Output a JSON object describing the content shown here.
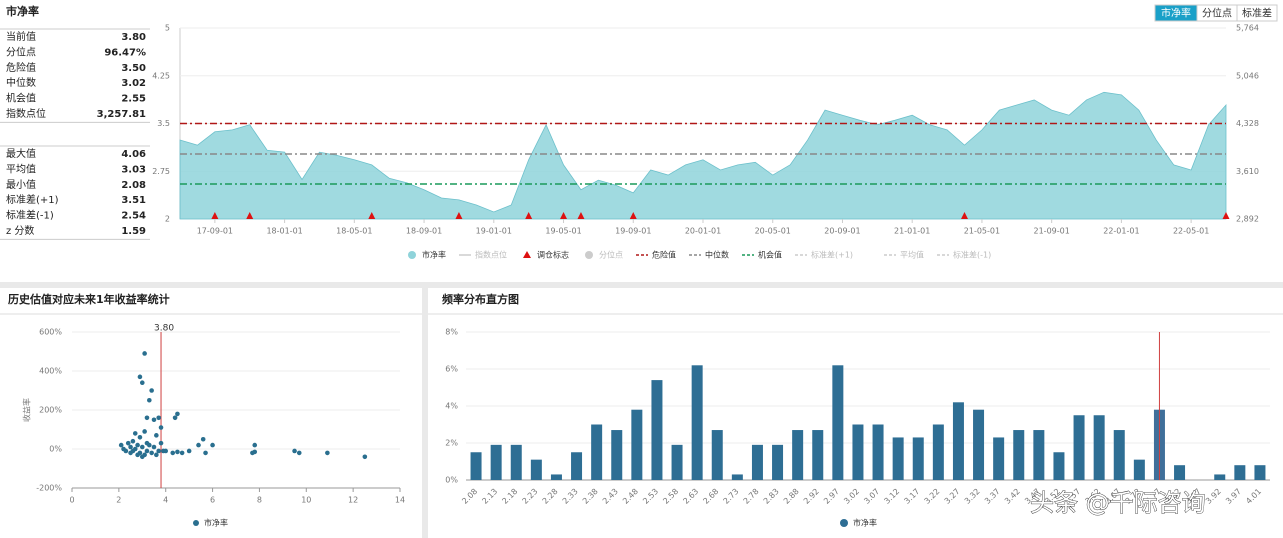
{
  "header": {
    "title": "市净率",
    "tabs": [
      "市净率",
      "分位点",
      "标准差"
    ]
  },
  "stats": {
    "groups": [
      [
        [
          "当前值",
          "3.80"
        ],
        [
          "分位点",
          "96.47%"
        ],
        [
          "危险值",
          "3.50"
        ],
        [
          "中位数",
          "3.02"
        ],
        [
          "机会值",
          "2.55"
        ],
        [
          "指数点位",
          "3,257.81"
        ]
      ],
      [
        [
          "最大值",
          "4.06"
        ],
        [
          "平均值",
          "3.03"
        ],
        [
          "最小值",
          "2.08"
        ],
        [
          "标准差(+1)",
          "3.51"
        ],
        [
          "标准差(-1)",
          "2.54"
        ],
        [
          "z 分数",
          "1.59"
        ]
      ]
    ]
  },
  "watermark": "头条 @千际咨询",
  "chart_data": [
    {
      "type": "area",
      "categories": [
        null,
        null,
        "17-09-01",
        null,
        null,
        null,
        "18-01-01",
        null,
        null,
        null,
        "18-05-01",
        null,
        null,
        null,
        "18-09-01",
        null,
        null,
        null,
        "19-01-01",
        null,
        null,
        null,
        "19-05-01",
        null,
        null,
        null,
        "19-09-01",
        null,
        null,
        null,
        "20-01-01",
        null,
        null,
        null,
        "20-05-01",
        null,
        null,
        null,
        "20-09-01",
        null,
        null,
        null,
        "21-01-01",
        null,
        null,
        null,
        "21-05-01",
        null,
        null,
        null,
        "21-09-01",
        null,
        null,
        null,
        "22-01-01",
        null,
        null,
        null,
        "22-05-01",
        null,
        null
      ],
      "series": [
        {
          "name": "市净率",
          "color": "#8fd3da",
          "values": [
            3.24,
            3.16,
            3.37,
            3.4,
            3.48,
            3.08,
            3.05,
            2.62,
            3.05,
            3.0,
            2.93,
            2.85,
            2.64,
            2.57,
            2.46,
            2.33,
            2.3,
            2.22,
            2.11,
            2.22,
            2.93,
            3.48,
            2.85,
            2.46,
            2.61,
            2.53,
            2.41,
            2.77,
            2.69,
            2.85,
            2.93,
            2.77,
            2.85,
            2.89,
            2.69,
            2.85,
            3.24,
            3.71,
            3.63,
            3.55,
            3.48,
            3.55,
            3.63,
            3.48,
            3.4,
            3.16,
            3.4,
            3.71,
            3.79,
            3.87,
            3.71,
            3.63,
            3.87,
            3.99,
            3.95,
            3.71,
            3.24,
            2.85,
            2.77,
            3.48,
            3.79
          ]
        },
        {
          "name": "调仓标志",
          "color": "#dd1111",
          "values": [
            null,
            null,
            2,
            null,
            2,
            null,
            null,
            null,
            null,
            null,
            null,
            2,
            null,
            null,
            null,
            null,
            2,
            null,
            null,
            null,
            2,
            null,
            2,
            2,
            null,
            null,
            2,
            null,
            null,
            null,
            null,
            null,
            null,
            null,
            null,
            null,
            null,
            null,
            null,
            null,
            null,
            null,
            null,
            null,
            null,
            2,
            null,
            null,
            null,
            null,
            null,
            null,
            null,
            null,
            null,
            null,
            null,
            null,
            null,
            null,
            2
          ]
        }
      ],
      "lines": [
        {
          "name": "危险值",
          "value": 3.5,
          "color": "#b01818"
        },
        {
          "name": "中位数",
          "value": 3.02,
          "color": "#888888"
        },
        {
          "name": "机会值",
          "value": 2.55,
          "color": "#1a9a5a"
        }
      ],
      "inactive_legend": [
        "指数点位",
        "分位点",
        "标准差(+1)",
        "平均值",
        "标准差(-1)"
      ],
      "ylim": [
        2,
        5
      ],
      "yticks": [
        2,
        2.75,
        3.5,
        4.25,
        5
      ],
      "y2lim": [
        2892,
        5764
      ],
      "y2ticks": [
        {
          "value": 2892,
          "label": "2,892"
        },
        {
          "value": 3610,
          "label": "3,610"
        },
        {
          "value": 4328,
          "label": "4,328"
        },
        {
          "value": 5046,
          "label": "5,046"
        },
        {
          "value": 5764,
          "label": "5,764"
        }
      ],
      "grid": true
    },
    {
      "type": "scatter",
      "title": "历史估值对应未来1年收益率统计",
      "ylabel": "收益率",
      "x": [
        2.1,
        2.2,
        2.3,
        2.4,
        2.5,
        2.5,
        2.6,
        2.6,
        2.7,
        2.7,
        2.8,
        2.8,
        2.9,
        2.9,
        2.9,
        3.0,
        3.0,
        3.0,
        3.1,
        3.1,
        3.1,
        3.2,
        3.2,
        3.2,
        3.3,
        3.3,
        3.4,
        3.4,
        3.5,
        3.5,
        3.6,
        3.6,
        3.7,
        3.7,
        3.8,
        3.8,
        3.9,
        4.0,
        4.3,
        4.4,
        4.5,
        4.5,
        4.7,
        5.0,
        5.4,
        5.6,
        5.7,
        6.0,
        7.7,
        7.8,
        7.8,
        9.5,
        9.7,
        10.9,
        12.5
      ],
      "series": [
        {
          "name": "市净率",
          "color": "#2a6f8f",
          "values": [
            20,
            0,
            -10,
            30,
            10,
            -20,
            40,
            -10,
            80,
            0,
            20,
            -30,
            370,
            60,
            -20,
            340,
            10,
            -40,
            490,
            90,
            -30,
            160,
            30,
            -10,
            250,
            20,
            300,
            -20,
            150,
            10,
            70,
            -30,
            160,
            -10,
            110,
            30,
            -10,
            -10,
            -20,
            160,
            180,
            -15,
            -20,
            -10,
            20,
            50,
            -20,
            20,
            -20,
            20,
            -15,
            -10,
            -20,
            -20,
            -40
          ]
        }
      ],
      "marker": {
        "value": 3.8,
        "label": "3.80",
        "color": "#d04040"
      },
      "xlim": [
        0,
        14
      ],
      "xticks": [
        0,
        2,
        4,
        6,
        8,
        10,
        12,
        14
      ],
      "ylim": [
        -200,
        600
      ],
      "yticks": [
        {
          "value": -200,
          "label": "-200%"
        },
        {
          "value": 0,
          "label": "0%"
        },
        {
          "value": 200,
          "label": "200%"
        },
        {
          "value": 400,
          "label": "400%"
        },
        {
          "value": 600,
          "label": "600%"
        }
      ],
      "grid": true
    },
    {
      "type": "bar",
      "title": "频率分布直方图",
      "categories": [
        "2.08",
        "2.13",
        "2.18",
        "2.23",
        "2.28",
        "2.33",
        "2.38",
        "2.43",
        "2.48",
        "2.53",
        "2.58",
        "2.63",
        "2.68",
        "2.73",
        "2.78",
        "2.83",
        "2.88",
        "2.92",
        "2.97",
        "3.02",
        "3.07",
        "3.12",
        "3.17",
        "3.22",
        "3.27",
        "3.32",
        "3.37",
        "3.42",
        "3.47",
        "3.52",
        "3.57",
        "3.62",
        "3.67",
        "3.72",
        "3.77",
        "3.82",
        "3.87",
        "3.92",
        "3.97",
        "4.01"
      ],
      "series": [
        {
          "name": "市净率",
          "color": "#2e6e94",
          "values": [
            1.5,
            1.9,
            1.9,
            1.1,
            0.3,
            1.5,
            3.0,
            2.7,
            3.8,
            5.4,
            1.9,
            6.2,
            2.7,
            0.3,
            1.9,
            1.9,
            2.7,
            2.7,
            6.2,
            3.0,
            3.0,
            2.3,
            2.3,
            3.0,
            4.2,
            3.8,
            2.3,
            2.7,
            2.7,
            1.5,
            3.5,
            3.5,
            2.7,
            1.1,
            3.8,
            0.8,
            0,
            0.3,
            0.8,
            0.8
          ]
        }
      ],
      "ylim": [
        0,
        8
      ],
      "yticks": [
        {
          "value": 0,
          "label": "0%"
        },
        {
          "value": 2,
          "label": "2%"
        },
        {
          "value": 4,
          "label": "4%"
        },
        {
          "value": 6,
          "label": "6%"
        },
        {
          "value": 8,
          "label": "8%"
        }
      ],
      "grid": true
    }
  ]
}
